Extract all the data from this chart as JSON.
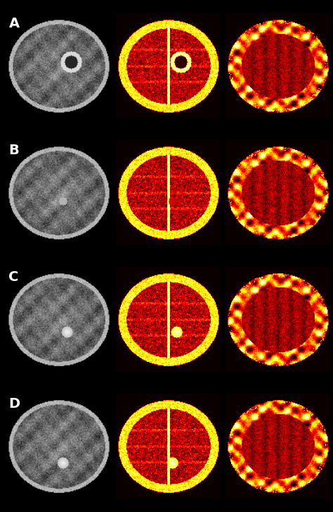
{
  "rows": [
    "A",
    "B",
    "C",
    "D"
  ],
  "background_color": "#000000",
  "label_color": "#ffffff",
  "label_fontsize": 14,
  "label_fontweight": "bold",
  "fig_width": 4.74,
  "fig_height": 7.27,
  "dpi": 100
}
